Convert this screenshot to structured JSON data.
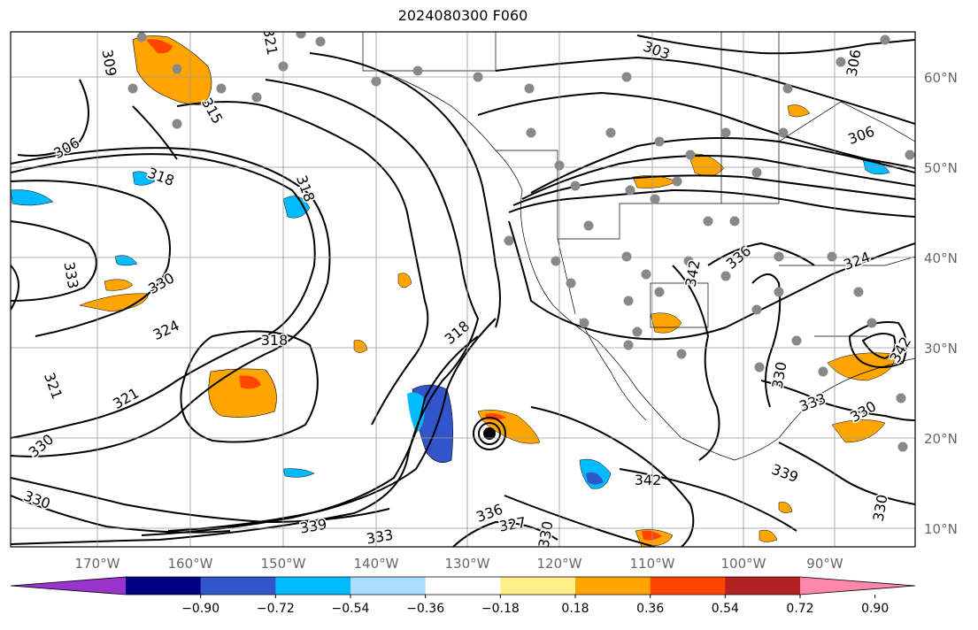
{
  "title": "2024080300 F060",
  "lon_labels": [
    "170°W",
    "160°W",
    "150°W",
    "140°W",
    "130°W",
    "120°W",
    "110°W",
    "100°W",
    "90°W"
  ],
  "lat_labels": [
    "60°N",
    "50°N",
    "40°N",
    "30°N",
    "20°N",
    "10°N"
  ],
  "colorbar": {
    "colors": [
      "#9933cc",
      "#000080",
      "#3355cc",
      "#00bbff",
      "#aaddff",
      "#ffffff",
      "#ffee88",
      "#ffa500",
      "#ff4500",
      "#b22222",
      "#ff88aa"
    ],
    "tick_labels": [
      "−0.90",
      "−0.72",
      "−0.54",
      "−0.36",
      "−0.18",
      "0.18",
      "0.36",
      "0.54",
      "0.72",
      "0.90"
    ]
  },
  "contour_labels": [
    "309",
    "321",
    "303",
    "306",
    "306",
    "306",
    "318",
    "318",
    "315",
    "333",
    "330",
    "324",
    "318",
    "321",
    "321",
    "330",
    "330",
    "336",
    "342",
    "324",
    "333",
    "342",
    "339",
    "327",
    "336",
    "330",
    "318",
    "330",
    "342",
    "339",
    "333",
    "330",
    "330"
  ],
  "contour_color": "#000000",
  "dot_color": "#888888"
}
